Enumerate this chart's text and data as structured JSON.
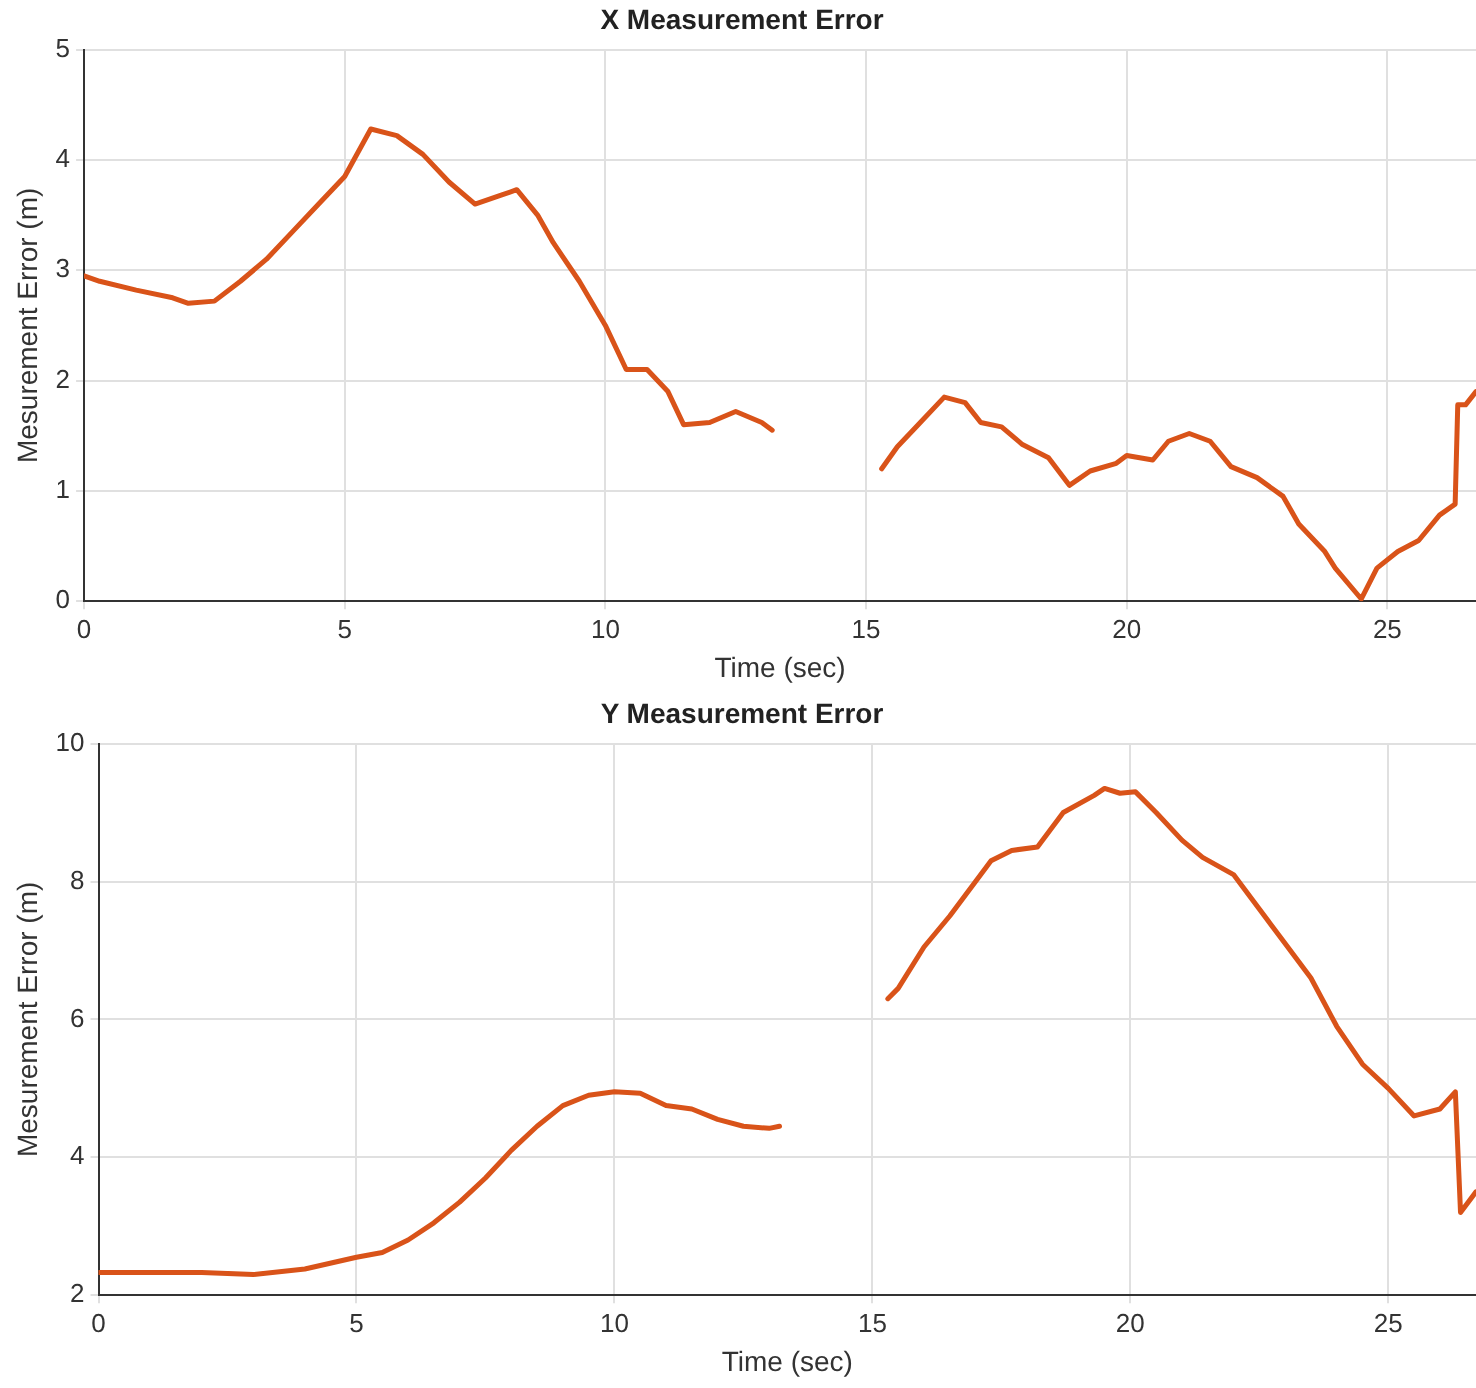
{
  "chart_data": [
    {
      "type": "line",
      "title": "X Measurement Error",
      "xlabel": "Time (sec)",
      "ylabel": "Mesurement Error (m)",
      "xlim": [
        0,
        26.7
      ],
      "xticks": [
        0,
        5,
        10,
        15,
        20,
        25
      ],
      "ylim": [
        0,
        5
      ],
      "yticks": [
        0,
        1,
        2,
        3,
        4,
        5
      ],
      "grid": true,
      "legend": false,
      "x": [
        0,
        0.3,
        1,
        1.7,
        2,
        2.5,
        3,
        3.5,
        4,
        4.5,
        5,
        5.5,
        6,
        6.5,
        7,
        7.5,
        8,
        8.3,
        8.7,
        9,
        9.5,
        10,
        10.4,
        10.8,
        11.2,
        11.5,
        12,
        12.5,
        13,
        13.2,
        14,
        15.3,
        15.6,
        16,
        16.5,
        16.9,
        17.2,
        17.6,
        18,
        18.5,
        18.9,
        19.3,
        19.8,
        20,
        20.5,
        20.8,
        21.2,
        21.6,
        22,
        22.5,
        23,
        23.3,
        23.8,
        24,
        24.5,
        24.8,
        25.2,
        25.6,
        26,
        26.3,
        26.35,
        26.5,
        26.7
      ],
      "series": [
        {
          "color": "#d95319",
          "values": [
            2.95,
            2.9,
            2.82,
            2.75,
            2.7,
            2.72,
            2.9,
            3.1,
            3.35,
            3.6,
            3.85,
            4.28,
            4.22,
            4.05,
            3.8,
            3.6,
            3.68,
            3.73,
            3.5,
            3.25,
            2.9,
            2.5,
            2.1,
            2.1,
            1.9,
            1.6,
            1.62,
            1.72,
            1.62,
            1.55,
            null,
            1.2,
            1.4,
            1.6,
            1.85,
            1.8,
            1.62,
            1.58,
            1.42,
            1.3,
            1.05,
            1.18,
            1.25,
            1.32,
            1.28,
            1.45,
            1.52,
            1.45,
            1.22,
            1.12,
            0.95,
            0.7,
            0.45,
            0.3,
            0.02,
            0.3,
            0.45,
            0.55,
            0.78,
            0.88,
            1.78,
            1.78,
            1.9
          ]
        }
      ]
    },
    {
      "type": "line",
      "title": "Y Measurement Error",
      "xlabel": "Time (sec)",
      "ylabel": "Mesurement Error (m)",
      "xlim": [
        0,
        26.7
      ],
      "xticks": [
        0,
        5,
        10,
        15,
        20,
        25
      ],
      "ylim": [
        2,
        10
      ],
      "yticks": [
        2,
        4,
        6,
        8,
        10
      ],
      "grid": true,
      "legend": false,
      "x": [
        0,
        1,
        2,
        3,
        4,
        5,
        5.5,
        6,
        6.5,
        7,
        7.5,
        8,
        8.5,
        9,
        9.5,
        10,
        10.5,
        11,
        11.5,
        12,
        12.5,
        13,
        13.2,
        14,
        15.3,
        15.5,
        16,
        16.5,
        17,
        17.3,
        17.7,
        18.2,
        18.7,
        19.3,
        19.5,
        19.8,
        20.1,
        20.5,
        21,
        21.4,
        22,
        22.5,
        23,
        23.5,
        24,
        24.5,
        25,
        25.5,
        26,
        26.3,
        26.4,
        26.7
      ],
      "series": [
        {
          "color": "#d95319",
          "values": [
            2.33,
            2.33,
            2.33,
            2.3,
            2.38,
            2.55,
            2.62,
            2.8,
            3.05,
            3.35,
            3.7,
            4.1,
            4.45,
            4.75,
            4.9,
            4.95,
            4.93,
            4.75,
            4.7,
            4.55,
            4.45,
            4.42,
            4.45,
            null,
            6.3,
            6.45,
            7.05,
            7.5,
            8.0,
            8.3,
            8.45,
            8.5,
            9.0,
            9.25,
            9.35,
            9.28,
            9.3,
            9.0,
            8.6,
            8.35,
            8.1,
            7.6,
            7.1,
            6.6,
            5.9,
            5.35,
            5.0,
            4.6,
            4.7,
            4.95,
            3.2,
            3.5
          ]
        }
      ]
    }
  ]
}
